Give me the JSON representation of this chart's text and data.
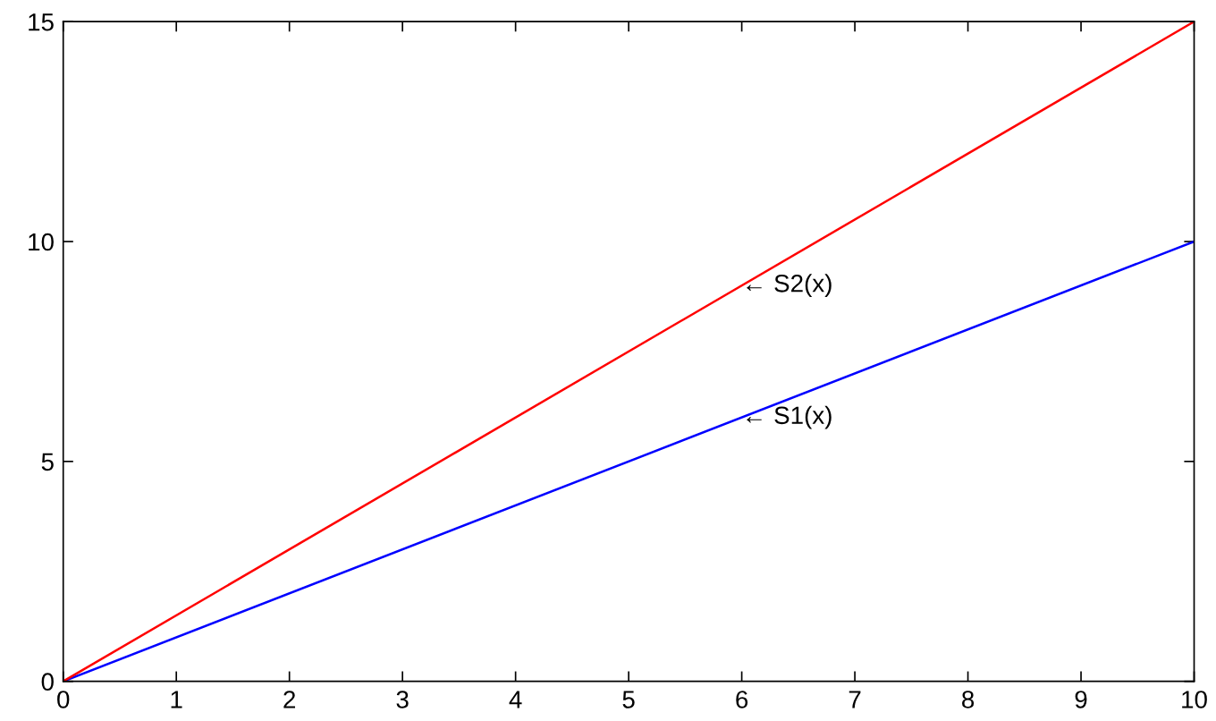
{
  "chart_data": {
    "type": "line",
    "x": [
      0,
      10
    ],
    "series": [
      {
        "color": "#0000ff",
        "values": [
          0,
          10
        ]
      },
      {
        "color": "#ff0000",
        "values": [
          0,
          15
        ]
      }
    ],
    "xlim": [
      0,
      10
    ],
    "ylim": [
      0,
      15
    ],
    "xticks": [
      0,
      1,
      2,
      3,
      4,
      5,
      6,
      7,
      8,
      9,
      10
    ],
    "yticks": [
      0,
      5,
      10,
      15
    ],
    "grid": false,
    "legend": false,
    "marker": "none",
    "line_style": "solid",
    "annotations": [
      {
        "text": "← S2(x)",
        "x": 6,
        "y": 9
      },
      {
        "text": "← S1(x)",
        "x": 6,
        "y": 6
      }
    ]
  }
}
